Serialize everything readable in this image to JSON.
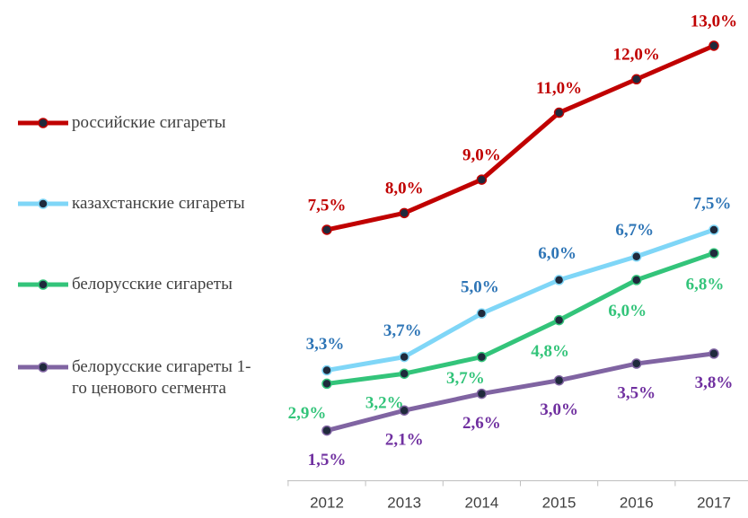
{
  "chart_data": {
    "type": "line",
    "categories": [
      "2012",
      "2013",
      "2014",
      "2015",
      "2016",
      "2017"
    ],
    "ylim": [
      0,
      14
    ],
    "series": [
      {
        "name": "российские сигареты",
        "color": "#c00000",
        "label_color": "#c00000",
        "values": [
          7.5,
          8.0,
          9.0,
          11.0,
          12.0,
          13.0
        ],
        "value_labels": [
          "7,5%",
          "8,0%",
          "9,0%",
          "11,0%",
          "12,0%",
          "13,0%"
        ]
      },
      {
        "name": "казахстанские сигареты",
        "color": "#7fd6f7",
        "label_color": "#2e75b6",
        "values": [
          3.3,
          3.7,
          5.0,
          6.0,
          6.7,
          7.5
        ],
        "value_labels": [
          "3,3%",
          "3,7%",
          "5,0%",
          "6,0%",
          "6,7%",
          "7,5%"
        ]
      },
      {
        "name": "белорусские сигареты",
        "color": "#33c47a",
        "label_color": "#33c47a",
        "values": [
          2.9,
          3.2,
          3.7,
          4.8,
          6.0,
          6.8
        ],
        "value_labels": [
          "2,9%",
          "3,2%",
          "3,7%",
          "4,8%",
          "6,0%",
          "6,8%"
        ]
      },
      {
        "name": "белорусские сигареты 1-го ценового сегмента",
        "color": "#8064a2",
        "label_color": "#7030a0",
        "values": [
          1.5,
          2.1,
          2.6,
          3.0,
          3.5,
          3.8
        ],
        "value_labels": [
          "1,5%",
          "2,1%",
          "2,6%",
          "3,0%",
          "3,5%",
          "3,8%"
        ]
      }
    ],
    "legend": "left",
    "marker_color": "#1f2a3c"
  }
}
